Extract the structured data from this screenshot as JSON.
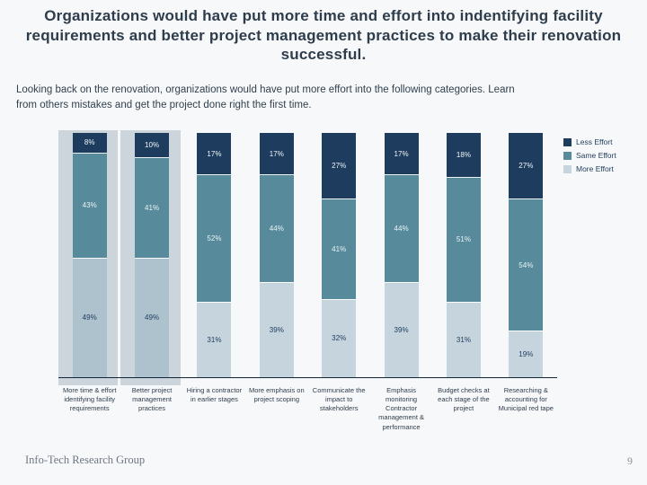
{
  "slide": {
    "title": "Organizations would have put more time and effort into indentifying facility requirements and better project management practices to make their renovation successful.",
    "subtitle": "Looking back on the renovation, organizations would have put more effort into the following categories. Learn from others mistakes and get the project done right the first time.",
    "footer": {
      "brand": "Info-Tech Research Group",
      "page_number": "9"
    }
  },
  "chart_data": {
    "type": "bar",
    "stacked": true,
    "percent_stacked": true,
    "grid": false,
    "legend_position": "top-right",
    "ylim": [
      0,
      100
    ],
    "categories": [
      "More time & effort identifying facility requirements",
      "Better project management practices",
      "Hiring a contractor in earlier stages",
      "More emphasis on project scoping",
      "Communicate the impact to stakeholders",
      "Emphasis monitoring Contractor management & performance",
      "Budget checks at each stage of the project",
      "Researching & accounting for Municipal red tape"
    ],
    "series": [
      {
        "name": "Less Effort",
        "color": "#1d3c5e",
        "label_color": "#f2f7fa",
        "values": [
          8,
          10,
          17,
          17,
          27,
          17,
          18,
          27
        ]
      },
      {
        "name": "Same Effort",
        "color": "#578b9b",
        "label_color": "#eaf2f5",
        "values": [
          43,
          41,
          52,
          44,
          41,
          44,
          51,
          54
        ]
      },
      {
        "name": "More Effort",
        "color": "#c5d4dd",
        "label_color": "#1d3c5e",
        "values": [
          49,
          49,
          31,
          39,
          32,
          39,
          31,
          19
        ]
      }
    ],
    "value_label_suffix": "%",
    "highlighted_category_indices": [
      0,
      1
    ],
    "highlight_band_color": "#cdd5dc",
    "highlighted_more_effort_color": "#aec2ce",
    "axis_line_color": "#14273a"
  }
}
